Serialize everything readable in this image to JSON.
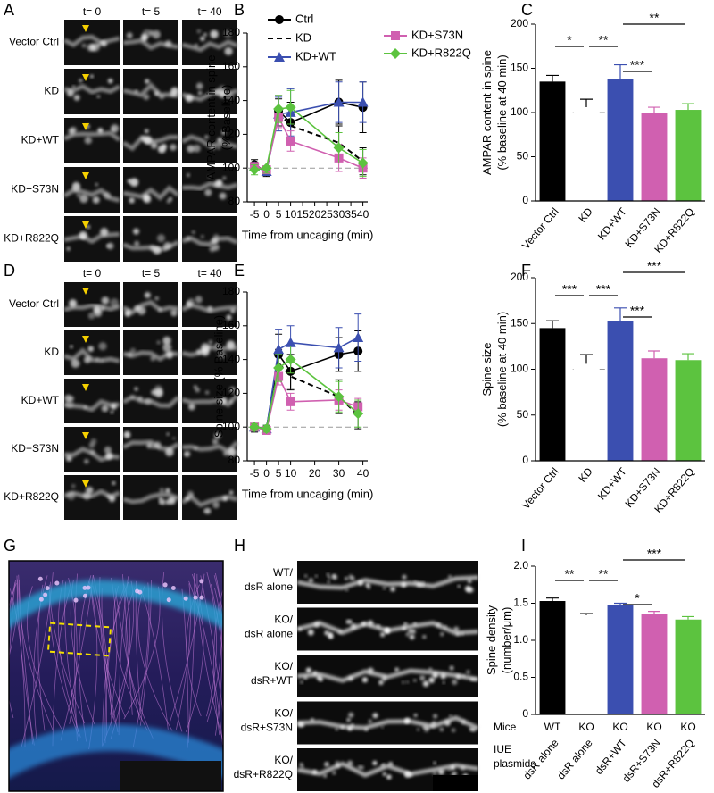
{
  "image_panels": [
    {
      "panel_label": "A",
      "column_headers": [
        "t= 0",
        "t= 5",
        "t= 40"
      ],
      "row_labels": [
        "Vector Ctrl",
        "KD",
        "KD+WT",
        "KD+S73N",
        "KD+R822Q"
      ]
    },
    {
      "panel_label": "D",
      "column_headers": [
        "t= 0",
        "t= 5",
        "t= 40"
      ],
      "row_labels": [
        "Vector Ctrl",
        "KD",
        "KD+WT",
        "KD+S73N",
        "KD+R822Q"
      ]
    },
    {
      "panel_label": "G"
    },
    {
      "panel_label": "H",
      "row_labels": [
        [
          "WT/",
          "dsR alone"
        ],
        [
          "KO/",
          "dsR alone"
        ],
        [
          "KO/",
          "dsR+WT"
        ],
        [
          "KO/",
          "dsR+S73N"
        ],
        [
          "KO/",
          "dsR+R822Q"
        ]
      ]
    }
  ],
  "chart_data": [
    {
      "type": "line",
      "panel_label": "B",
      "ylabel": [
        "AMPAR content in spine",
        "(% Baseline)"
      ],
      "xlabel": "Time from uncaging (min)",
      "xlim": [
        -8,
        42
      ],
      "xticks": [
        -5,
        0,
        5,
        10,
        15,
        20,
        25,
        30,
        35,
        40
      ],
      "ylim": [
        80,
        180
      ],
      "yticks": [
        80,
        100,
        120,
        140,
        160,
        180
      ],
      "reference_line": 100,
      "legend": "top",
      "x": [
        -5,
        0,
        5,
        10,
        30,
        40
      ],
      "series": [
        {
          "name": "Ctrl",
          "color": "#000000",
          "marker": "circle",
          "line_style": "solid",
          "values": [
            102,
            98,
            134,
            127,
            139,
            136
          ],
          "errors": [
            3,
            3,
            9,
            12,
            13,
            15
          ]
        },
        {
          "name": "KD",
          "color": "#000000",
          "marker": "none",
          "line_style": "dashed",
          "values": [
            101,
            99,
            133,
            125,
            115,
            104
          ],
          "errors": [
            2,
            2,
            8,
            8,
            10,
            8
          ]
        },
        {
          "name": "KD+WT",
          "color": "#3b4fb0",
          "marker": "triangle",
          "line_style": "solid",
          "values": [
            101,
            98,
            132,
            133,
            139,
            139
          ],
          "errors": [
            2,
            2,
            10,
            14,
            12,
            12
          ]
        },
        {
          "name": "KD+S73N",
          "color": "#d060b0",
          "marker": "square",
          "line_style": "solid",
          "values": [
            101,
            99,
            130,
            116,
            106,
            100
          ],
          "errors": [
            2,
            2,
            6,
            6,
            8,
            6
          ]
        },
        {
          "name": "KD+R822Q",
          "color": "#5cc33f",
          "marker": "diamond",
          "line_style": "solid",
          "values": [
            99,
            100,
            135,
            136,
            112,
            103
          ],
          "errors": [
            3,
            3,
            8,
            10,
            9,
            8
          ]
        }
      ]
    },
    {
      "type": "bar",
      "panel_label": "C",
      "ylabel": [
        "AMPAR content in spine",
        "(% baseline at 40 min)"
      ],
      "categories": [
        "Vector Ctrl",
        "KD",
        "KD+WT",
        "KD+S73N",
        "KD+R822Q"
      ],
      "values": [
        135,
        106,
        138,
        99,
        103
      ],
      "errors": [
        7,
        9,
        16,
        7,
        7
      ],
      "colors": [
        "#000000",
        "#ffffff",
        "#3b4fb0",
        "#d060b0",
        "#5cc33f"
      ],
      "reference_line": 100,
      "ylim": [
        0,
        200
      ],
      "yticks": [
        0,
        50,
        100,
        150,
        200
      ],
      "significance": [
        {
          "pair": [
            0,
            1
          ],
          "label": "*"
        },
        {
          "pair": [
            1,
            2
          ],
          "label": "**"
        },
        {
          "pair": [
            2,
            3
          ],
          "label": "***"
        },
        {
          "pair": [
            2,
            4
          ],
          "label": "**"
        }
      ]
    },
    {
      "type": "line",
      "panel_label": "E",
      "ylabel": [
        "Spine size (% Baseline)"
      ],
      "xlabel": "Time from uncaging (min)",
      "xlim": [
        -8,
        42
      ],
      "xticks": [
        -5,
        0,
        5,
        10,
        20,
        30,
        40
      ],
      "ylim": [
        80,
        180
      ],
      "yticks": [
        80,
        100,
        120,
        140,
        160,
        180
      ],
      "reference_line": 100,
      "x": [
        -5,
        0,
        5,
        10,
        30,
        38
      ],
      "series": [
        {
          "color": "#000000",
          "marker": "circle",
          "line_style": "solid",
          "values": [
            100,
            99,
            143,
            133,
            143,
            145
          ],
          "errors": [
            3,
            2,
            12,
            10,
            10,
            12
          ]
        },
        {
          "color": "#000000",
          "marker": "none",
          "line_style": "dashed",
          "values": [
            100,
            99,
            138,
            130,
            118,
            107
          ],
          "errors": [
            2,
            2,
            8,
            8,
            10,
            8
          ]
        },
        {
          "color": "#3b4fb0",
          "marker": "triangle",
          "line_style": "solid",
          "values": [
            100,
            99,
            146,
            150,
            147,
            153
          ],
          "errors": [
            2,
            2,
            12,
            10,
            12,
            14
          ]
        },
        {
          "color": "#d060b0",
          "marker": "square",
          "line_style": "solid",
          "values": [
            100,
            98,
            130,
            115,
            116,
            112
          ],
          "errors": [
            2,
            2,
            5,
            5,
            6,
            5
          ]
        },
        {
          "color": "#5cc33f",
          "marker": "diamond",
          "line_style": "solid",
          "values": [
            100,
            99,
            135,
            140,
            118,
            108
          ],
          "errors": [
            2,
            2,
            8,
            8,
            9,
            8
          ]
        }
      ]
    },
    {
      "type": "bar",
      "panel_label": "F",
      "ylabel": [
        "Spine size",
        "(% baseline at 40 min)"
      ],
      "categories": [
        "Vector Ctrl",
        "KD",
        "KD+WT",
        "KD+S73N",
        "KD+R822Q"
      ],
      "values": [
        145,
        106,
        153,
        112,
        110
      ],
      "errors": [
        8,
        10,
        14,
        8,
        7
      ],
      "colors": [
        "#000000",
        "#ffffff",
        "#3b4fb0",
        "#d060b0",
        "#5cc33f"
      ],
      "reference_line": 100,
      "ylim": [
        0,
        200
      ],
      "yticks": [
        0,
        50,
        100,
        150,
        200
      ],
      "significance": [
        {
          "pair": [
            0,
            1
          ],
          "label": "***"
        },
        {
          "pair": [
            1,
            2
          ],
          "label": "***"
        },
        {
          "pair": [
            2,
            3
          ],
          "label": "***"
        },
        {
          "pair": [
            2,
            4
          ],
          "label": "***"
        }
      ]
    },
    {
      "type": "bar",
      "panel_label": "I",
      "ylabel": [
        "Spine density",
        "(number/μm)"
      ],
      "mice_title": "Mice",
      "mice": [
        "WT",
        "KO",
        "KO",
        "KO",
        "KO"
      ],
      "categories_title": [
        "IUE",
        "plasmids"
      ],
      "categories": [
        "dsR alone",
        "dsR alone",
        "dsR+WT",
        "dsR+S73N",
        "dsR+R822Q"
      ],
      "values": [
        1.53,
        1.34,
        1.48,
        1.36,
        1.28
      ],
      "errors": [
        0.04,
        0.02,
        0.02,
        0.03,
        0.04
      ],
      "colors": [
        "#000000",
        "#ffffff",
        "#3b4fb0",
        "#d060b0",
        "#5cc33f"
      ],
      "ylim": [
        0,
        2
      ],
      "yticks": [
        0,
        0.5,
        {
          "value": 1,
          "label": "1.0"
        },
        1.5,
        {
          "value": 2,
          "label": "2.0"
        }
      ],
      "significance": [
        {
          "pair": [
            0,
            1
          ],
          "label": "**"
        },
        {
          "pair": [
            1,
            2
          ],
          "label": "**"
        },
        {
          "pair": [
            2,
            3
          ],
          "label": "*"
        },
        {
          "pair": [
            2,
            4
          ],
          "label": "***"
        }
      ]
    }
  ]
}
